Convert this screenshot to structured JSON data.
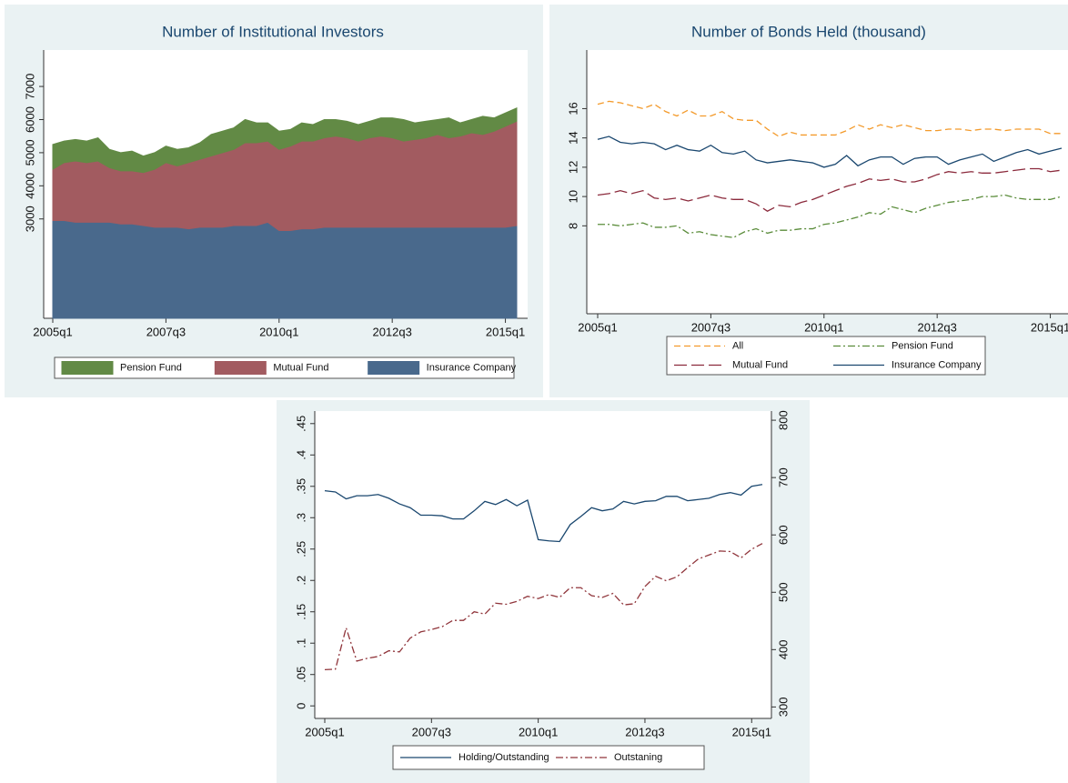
{
  "chart_data": [
    {
      "type": "area",
      "title": "Number of Institutional Investors",
      "stacked": true,
      "legend": "bottom",
      "categories": [
        "2005q1",
        null,
        null,
        null,
        null,
        null,
        null,
        null,
        null,
        null,
        "2007q3",
        null,
        null,
        null,
        null,
        null,
        null,
        null,
        null,
        null,
        "2010q1",
        null,
        null,
        null,
        null,
        null,
        null,
        null,
        null,
        null,
        "2012q3",
        null,
        null,
        null,
        null,
        null,
        null,
        null,
        null,
        null,
        "2015q1",
        null
      ],
      "series": [
        {
          "name": "Pension Fund",
          "color": "#628a45",
          "values": [
            750,
            650,
            650,
            650,
            700,
            550,
            550,
            600,
            500,
            500,
            500,
            500,
            450,
            500,
            650,
            650,
            650,
            700,
            600,
            550,
            550,
            500,
            550,
            500,
            550,
            500,
            500,
            500,
            500,
            550,
            600,
            650,
            500,
            500,
            450,
            600,
            400,
            400,
            550,
            400,
            400,
            400
          ]
        },
        {
          "name": "Mutual Fund",
          "color": "#a25b60",
          "values": [
            1550,
            1750,
            1850,
            1800,
            1850,
            1650,
            1600,
            1600,
            1600,
            1750,
            1950,
            1850,
            2000,
            2050,
            2150,
            2250,
            2300,
            2500,
            2500,
            2450,
            2450,
            2550,
            2650,
            2650,
            2700,
            2750,
            2700,
            2600,
            2700,
            2750,
            2700,
            2600,
            2650,
            2700,
            2800,
            2700,
            2750,
            2850,
            2800,
            2900,
            3050,
            3150
          ]
        },
        {
          "name": "Insurance Company",
          "color": "#49698c",
          "values": [
            2950,
            2950,
            2900,
            2900,
            2900,
            2900,
            2850,
            2850,
            2800,
            2750,
            2750,
            2750,
            2700,
            2750,
            2750,
            2750,
            2800,
            2800,
            2800,
            2900,
            2650,
            2650,
            2700,
            2700,
            2750,
            2750,
            2750,
            2750,
            2750,
            2750,
            2750,
            2750,
            2750,
            2750,
            2750,
            2750,
            2750,
            2750,
            2750,
            2750,
            2750,
            2800
          ]
        }
      ],
      "ylim": [
        0,
        8100
      ],
      "yticks": [
        3000,
        4000,
        5000,
        6000,
        7000
      ]
    },
    {
      "type": "line",
      "title": "Number of Bonds Held (thousand)",
      "legend": "bottom",
      "categories": [
        "2005q1",
        null,
        null,
        null,
        null,
        null,
        null,
        null,
        null,
        null,
        "2007q3",
        null,
        null,
        null,
        null,
        null,
        null,
        null,
        null,
        null,
        "2010q1",
        null,
        null,
        null,
        null,
        null,
        null,
        null,
        null,
        null,
        "2012q3",
        null,
        null,
        null,
        null,
        null,
        null,
        null,
        null,
        null,
        "2015q1",
        null
      ],
      "series": [
        {
          "name": "All",
          "color": "#f39a2b",
          "dash": "dashed",
          "values": [
            16.3,
            16.5,
            16.4,
            16.2,
            16.0,
            16.3,
            15.8,
            15.5,
            15.9,
            15.5,
            15.5,
            15.8,
            15.3,
            15.2,
            15.2,
            14.6,
            14.1,
            14.4,
            14.2,
            14.2,
            14.2,
            14.2,
            14.5,
            14.9,
            14.6,
            14.9,
            14.7,
            14.9,
            14.7,
            14.5,
            14.5,
            14.6,
            14.6,
            14.5,
            14.6,
            14.6,
            14.5,
            14.6,
            14.6,
            14.6,
            14.3,
            14.3
          ]
        },
        {
          "name": "Pension Fund",
          "color": "#5a8c3a",
          "dash": "dashdot",
          "values": [
            8.1,
            8.1,
            8.0,
            8.1,
            8.2,
            7.9,
            7.9,
            8.0,
            7.5,
            7.6,
            7.4,
            7.3,
            7.2,
            7.6,
            7.8,
            7.5,
            7.7,
            7.7,
            7.8,
            7.8,
            8.1,
            8.2,
            8.4,
            8.6,
            8.9,
            8.8,
            9.3,
            9.1,
            8.9,
            9.2,
            9.4,
            9.6,
            9.7,
            9.8,
            10.0,
            10.0,
            10.1,
            9.9,
            9.8,
            9.8,
            9.8,
            10.0
          ]
        },
        {
          "name": "Mutual Fund",
          "color": "#8b2a3c",
          "dash": "longdash",
          "values": [
            10.1,
            10.2,
            10.4,
            10.2,
            10.4,
            9.9,
            9.8,
            9.9,
            9.7,
            9.9,
            10.1,
            9.9,
            9.8,
            9.8,
            9.5,
            9.0,
            9.4,
            9.3,
            9.6,
            9.8,
            10.1,
            10.4,
            10.7,
            10.9,
            11.2,
            11.1,
            11.2,
            11.0,
            11.0,
            11.2,
            11.5,
            11.7,
            11.6,
            11.7,
            11.6,
            11.6,
            11.7,
            11.8,
            11.9,
            11.9,
            11.7,
            11.8
          ]
        },
        {
          "name": "Insurance Company",
          "color": "#1a476f",
          "dash": "solid",
          "values": [
            13.9,
            14.1,
            13.7,
            13.6,
            13.7,
            13.6,
            13.2,
            13.5,
            13.2,
            13.1,
            13.5,
            13.0,
            12.9,
            13.1,
            12.5,
            12.3,
            12.4,
            12.5,
            12.4,
            12.3,
            12.0,
            12.2,
            12.8,
            12.1,
            12.5,
            12.7,
            12.7,
            12.2,
            12.6,
            12.7,
            12.7,
            12.2,
            12.5,
            12.7,
            12.9,
            12.4,
            12.7,
            13.0,
            13.2,
            12.9,
            13.1,
            13.3
          ]
        }
      ],
      "ylim": [
        2,
        20
      ],
      "yticks": [
        8,
        10,
        12,
        14,
        16
      ]
    },
    {
      "type": "line",
      "legend": "bottom",
      "categories": [
        "2005q1",
        null,
        null,
        null,
        null,
        null,
        null,
        null,
        null,
        null,
        "2007q3",
        null,
        null,
        null,
        null,
        null,
        null,
        null,
        null,
        null,
        "2010q1",
        null,
        null,
        null,
        null,
        null,
        null,
        null,
        null,
        null,
        "2012q3",
        null,
        null,
        null,
        null,
        null,
        null,
        null,
        null,
        null,
        "2015q1",
        null
      ],
      "series": [
        {
          "name": "Holding/Outstanding",
          "color": "#1a476f",
          "dash": "solid",
          "values": [
            0.343,
            0.341,
            0.33,
            0.335,
            0.335,
            0.337,
            0.331,
            0.322,
            0.316,
            0.304,
            0.304,
            0.303,
            0.298,
            0.298,
            0.311,
            0.326,
            0.321,
            0.329,
            0.319,
            0.328,
            0.265,
            0.263,
            0.262,
            0.289,
            0.302,
            0.316,
            0.311,
            0.314,
            0.326,
            0.322,
            0.326,
            0.327,
            0.334,
            0.334,
            0.327,
            0.329,
            0.331,
            0.337,
            0.34,
            0.336,
            0.35,
            0.353
          ]
        },
        {
          "name": "Outstaning",
          "color": "#90353b",
          "dash": "dashdot",
          "axis": "y2",
          "values": [
            365,
            366,
            438,
            380,
            385,
            388,
            398,
            396,
            420,
            431,
            435,
            440,
            451,
            451,
            466,
            462,
            481,
            479,
            484,
            493,
            489,
            496,
            491,
            508,
            508,
            494,
            491,
            498,
            478,
            480,
            510,
            528,
            520,
            527,
            543,
            558,
            565,
            572,
            571,
            560,
            575,
            585
          ]
        }
      ],
      "ylim": [
        -0.02,
        0.47
      ],
      "yticks": [
        0,
        {
          "value": 0.05,
          "label": ".05"
        },
        {
          "value": 0.1,
          "label": ".1"
        },
        {
          "value": 0.15,
          "label": ".15"
        },
        {
          "value": 0.2,
          "label": ".2"
        },
        {
          "value": 0.25,
          "label": ".25"
        },
        {
          "value": 0.3,
          "label": ".3"
        },
        {
          "value": 0.35,
          "label": ".35"
        },
        {
          "value": 0.4,
          "label": ".4"
        },
        {
          "value": 0.45,
          "label": ".45"
        }
      ],
      "y2lim": [
        280,
        816
      ],
      "y2ticks": [
        300,
        400,
        500,
        600,
        700,
        800
      ]
    }
  ]
}
